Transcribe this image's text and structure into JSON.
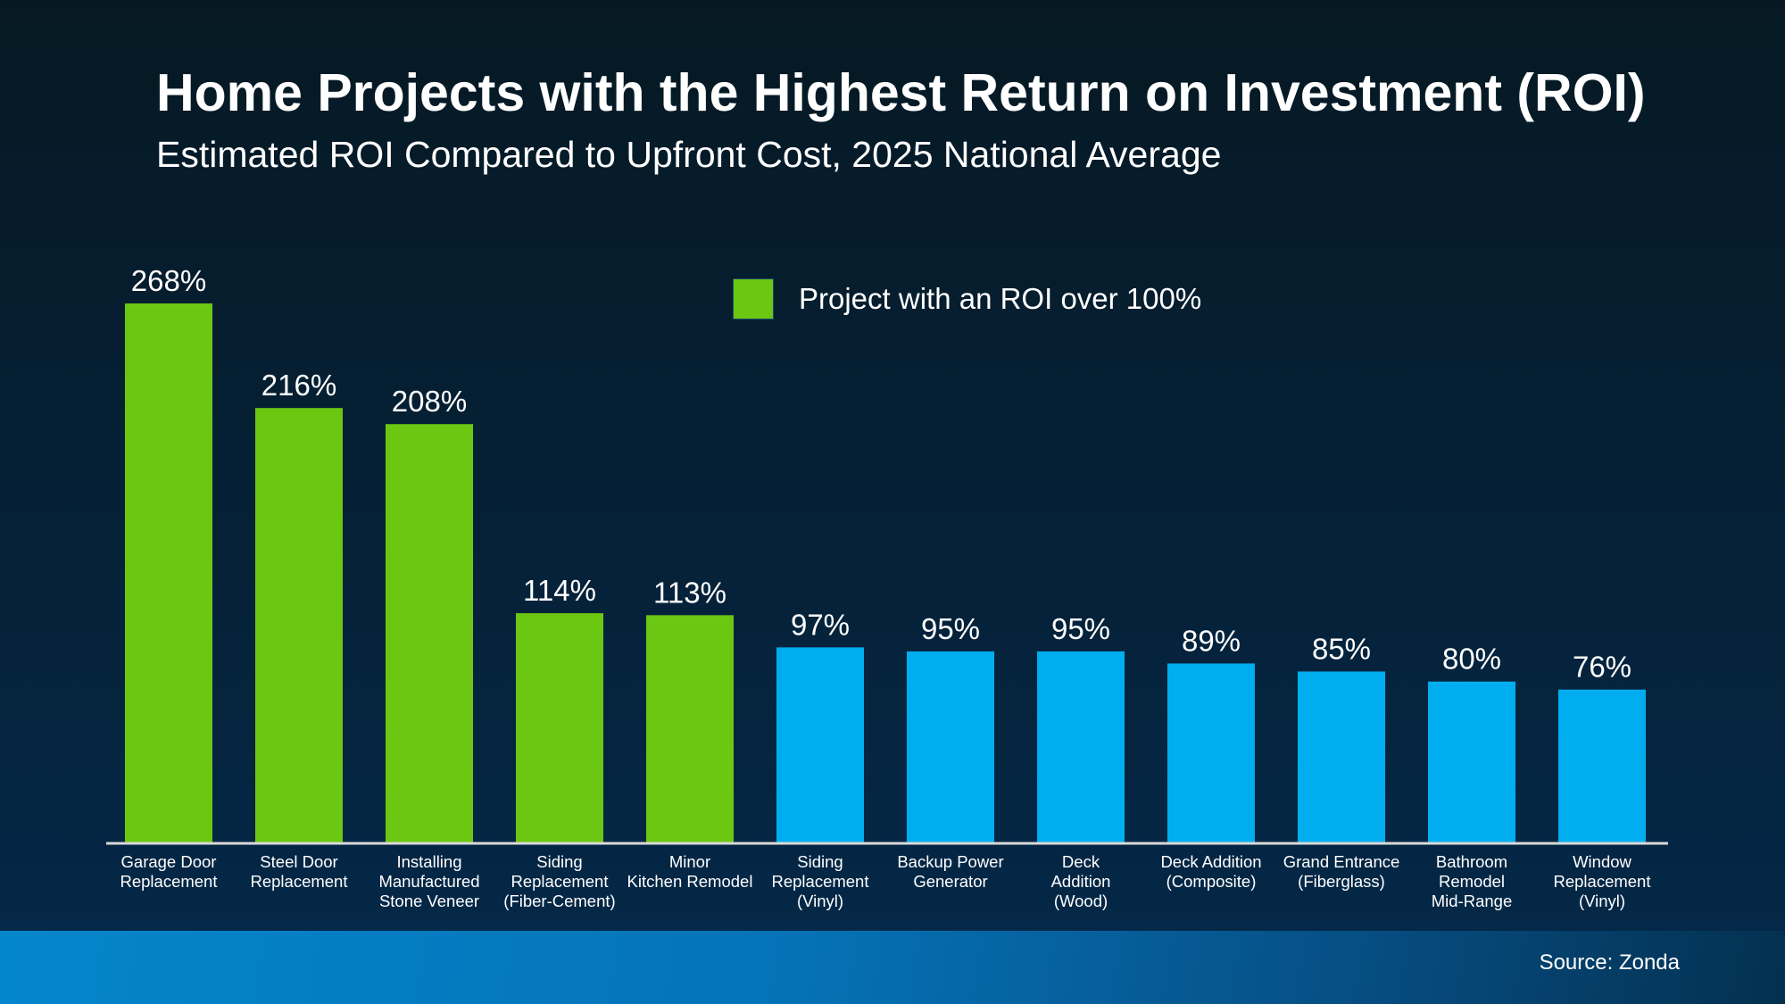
{
  "title": "Home Projects with the Highest Return on Investment (ROI)",
  "subtitle": "Estimated ROI Compared to Upfront Cost, 2025 National Average",
  "legend": {
    "label": "Project with an ROI over 100%",
    "color": "#6cc712"
  },
  "source": "Source: Zonda",
  "chart_data": {
    "type": "bar",
    "title": "Home Projects with the Highest Return on Investment (ROI)",
    "subtitle": "Estimated ROI Compared to Upfront Cost, 2025 National Average",
    "categories": [
      [
        "Garage Door",
        "Replacement"
      ],
      [
        "Steel Door",
        "Replacement"
      ],
      [
        "Installing",
        "Manufactured",
        "Stone Veneer"
      ],
      [
        "Siding",
        "Replacement",
        "(Fiber-Cement)"
      ],
      [
        "Minor",
        "Kitchen Remodel"
      ],
      [
        "Siding",
        "Replacement",
        "(Vinyl)"
      ],
      [
        "Backup Power",
        "Generator"
      ],
      [
        "Deck",
        "Addition",
        "(Wood)"
      ],
      [
        "Deck Addition",
        "(Composite)"
      ],
      [
        "Grand Entrance",
        "(Fiberglass)"
      ],
      [
        "Bathroom",
        "Remodel",
        "Mid-Range"
      ],
      [
        "Window",
        "Replacement",
        "(Vinyl)"
      ]
    ],
    "values": [
      268,
      216,
      208,
      114,
      113,
      97,
      95,
      95,
      89,
      85,
      80,
      76
    ],
    "data_labels": [
      "268%",
      "216%",
      "208%",
      "114%",
      "113%",
      "97%",
      "95%",
      "95%",
      "89%",
      "85%",
      "80%",
      "76%"
    ],
    "unit": "%",
    "ylim": [
      0,
      268
    ],
    "grid": false,
    "highlight_threshold": 100,
    "colors": {
      "over_threshold": "#6cc712",
      "default": "#00aeef",
      "axis": "#d9d9d9"
    },
    "legend_position": "top-center"
  }
}
